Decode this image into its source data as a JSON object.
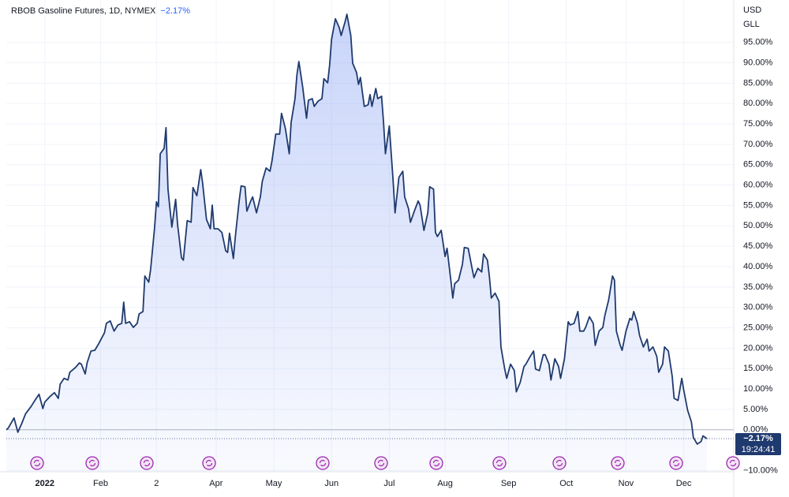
{
  "chart_data": {
    "type": "area",
    "title": "RBOB Gasoline Futures, 1D, NYMEX",
    "change_label": "−2.17%",
    "y_units": [
      "USD",
      "GLL"
    ],
    "last_value_label": "−2.17%",
    "time": "19:24:41",
    "line_color": "#1f3a6e",
    "fill_color": "#6f8ff0",
    "grid": true,
    "xlim": [
      -17,
      361
    ],
    "ylim": [
      -10.3,
      105.4
    ],
    "xticks": [
      {
        "value": 3,
        "label": "2022"
      },
      {
        "value": 32,
        "label": "Feb"
      },
      {
        "value": 61,
        "label": "2"
      },
      {
        "value": 92,
        "label": "Apr"
      },
      {
        "value": 122,
        "label": "May"
      },
      {
        "value": 152,
        "label": "Jun"
      },
      {
        "value": 182,
        "label": "Jul"
      },
      {
        "value": 211,
        "label": "Aug"
      },
      {
        "value": 244,
        "label": "Sep"
      },
      {
        "value": 274,
        "label": "Oct"
      },
      {
        "value": 305,
        "label": "Nov"
      },
      {
        "value": 335,
        "label": "Dec"
      }
    ],
    "yticks": [
      {
        "value": -10,
        "label": "−10.00%"
      },
      {
        "value": 0,
        "label": "0.00%"
      },
      {
        "value": 5,
        "label": "5.00%"
      },
      {
        "value": 10,
        "label": "10.00%"
      },
      {
        "value": 15,
        "label": "15.00%"
      },
      {
        "value": 20,
        "label": "20.00%"
      },
      {
        "value": 25,
        "label": "25.00%"
      },
      {
        "value": 30,
        "label": "30.00%"
      },
      {
        "value": 35,
        "label": "35.00%"
      },
      {
        "value": 40,
        "label": "40.00%"
      },
      {
        "value": 45,
        "label": "45.00%"
      },
      {
        "value": 50,
        "label": "50.00%"
      },
      {
        "value": 55,
        "label": "55.00%"
      },
      {
        "value": 60,
        "label": "60.00%"
      },
      {
        "value": 65,
        "label": "65.00%"
      },
      {
        "value": 70,
        "label": "70.00%"
      },
      {
        "value": 75,
        "label": "75.00%"
      },
      {
        "value": 80,
        "label": "80.00%"
      },
      {
        "value": 85,
        "label": "85.00%"
      },
      {
        "value": 90,
        "label": "90.00%"
      },
      {
        "value": 95,
        "label": "95.00%"
      }
    ],
    "x": [
      -17,
      -16,
      -13,
      -11,
      -9,
      -7,
      -4,
      -2,
      0,
      2,
      3,
      6,
      8,
      10,
      11,
      13,
      15,
      16,
      19,
      21,
      22,
      24,
      25,
      27,
      29,
      31,
      34,
      35,
      37,
      39,
      41,
      43,
      44,
      45,
      47,
      49,
      51,
      52,
      54,
      55,
      57,
      58,
      60,
      61,
      62,
      63,
      65,
      66,
      67,
      69,
      71,
      72,
      74,
      75,
      77,
      79,
      80,
      82,
      84,
      85,
      87,
      89,
      90,
      91,
      93,
      95,
      97,
      98,
      99,
      101,
      102,
      104,
      105,
      107,
      108,
      110,
      111,
      113,
      115,
      116,
      118,
      120,
      121,
      123,
      125,
      126,
      128,
      130,
      131,
      133,
      134,
      135,
      137,
      139,
      140,
      142,
      143,
      145,
      147,
      148,
      150,
      151,
      152,
      154,
      156,
      157,
      159,
      160,
      162,
      163,
      165,
      166,
      167,
      169,
      171,
      172,
      173,
      175,
      176,
      178,
      179,
      180,
      182,
      184,
      185,
      187,
      189,
      190,
      192,
      193,
      195,
      197,
      198,
      200,
      202,
      203,
      205,
      206,
      207,
      209,
      211,
      212,
      214,
      215,
      216,
      218,
      220,
      221,
      223,
      225,
      226,
      228,
      230,
      231,
      233,
      234,
      235,
      237,
      239,
      240,
      242,
      243,
      245,
      247,
      248,
      250,
      252,
      253,
      255,
      257,
      258,
      260,
      262,
      263,
      265,
      266,
      268,
      270,
      271,
      273,
      275,
      276,
      278,
      280,
      281,
      283,
      284,
      286,
      288,
      289,
      291,
      293,
      294,
      296,
      298,
      299,
      300,
      302,
      303,
      305,
      307,
      308,
      309,
      311,
      312,
      314,
      316,
      317,
      319,
      321,
      322,
      324,
      325,
      327,
      329,
      330,
      332,
      334,
      335,
      337,
      339,
      340,
      342,
      344,
      345,
      347
    ],
    "values": [
      0,
      0.4,
      2.9,
      -0.6,
      1.5,
      3.9,
      5.8,
      7.3,
      8.7,
      5.2,
      6.8,
      8.3,
      9.1,
      7.7,
      11.2,
      12.6,
      12.2,
      14.1,
      15.3,
      16.4,
      16.1,
      13.7,
      16.4,
      19.3,
      19.5,
      21.1,
      23.8,
      26.1,
      26.7,
      24.2,
      25.7,
      26.1,
      31.3,
      26.1,
      26.5,
      25.1,
      26.1,
      28.4,
      29.0,
      37.7,
      36.2,
      39.3,
      49.3,
      55.9,
      54.7,
      67.7,
      69.0,
      74.1,
      59.0,
      49.7,
      56.5,
      50.3,
      42.2,
      41.6,
      51.3,
      50.9,
      59.4,
      57.4,
      63.8,
      60.5,
      51.6,
      49.3,
      55.1,
      49.3,
      49.3,
      48.4,
      43.9,
      43.5,
      48.2,
      42.0,
      47.4,
      56.1,
      59.8,
      59.6,
      53.6,
      56.1,
      57.1,
      53.2,
      57.1,
      60.9,
      64.2,
      63.4,
      65.8,
      72.5,
      72.5,
      77.6,
      73.9,
      67.7,
      75.4,
      81.2,
      87.0,
      90.3,
      84.1,
      76.4,
      80.8,
      81.2,
      79.3,
      80.6,
      81.2,
      86.1,
      85.1,
      89.5,
      95.7,
      100.8,
      98.6,
      96.7,
      100.0,
      101.9,
      96.7,
      89.9,
      87.6,
      84.7,
      86.4,
      79.3,
      79.7,
      82.2,
      79.3,
      83.7,
      81.2,
      81.8,
      75.4,
      67.7,
      74.5,
      60.9,
      53.2,
      61.9,
      63.4,
      57.1,
      54.2,
      50.9,
      53.6,
      56.1,
      55.1,
      48.9,
      53.2,
      59.6,
      59.0,
      48.4,
      47.4,
      48.9,
      42.5,
      44.5,
      36.7,
      32.3,
      35.8,
      36.7,
      40.6,
      44.7,
      44.5,
      39.6,
      37.3,
      39.6,
      38.7,
      43.1,
      41.6,
      37.7,
      32.3,
      33.5,
      31.5,
      20.3,
      14.9,
      12.6,
      16.1,
      14.5,
      9.3,
      11.6,
      15.5,
      16.1,
      17.8,
      19.3,
      14.9,
      14.5,
      18.4,
      18.4,
      16.1,
      12.2,
      17.4,
      15.5,
      12.6,
      17.4,
      26.5,
      25.7,
      26.1,
      29.0,
      24.2,
      24.2,
      25.1,
      27.7,
      26.1,
      20.7,
      24.2,
      25.1,
      28.0,
      31.9,
      37.7,
      36.7,
      24.2,
      20.7,
      19.5,
      24.2,
      27.3,
      26.9,
      29.0,
      26.1,
      23.2,
      20.3,
      22.2,
      19.3,
      20.3,
      18.0,
      14.1,
      16.1,
      20.3,
      19.3,
      13.2,
      7.7,
      7.2,
      12.6,
      9.7,
      4.8,
      1.9,
      -1.9,
      -3.5,
      -2.9,
      -1.5,
      -2.17
    ]
  }
}
